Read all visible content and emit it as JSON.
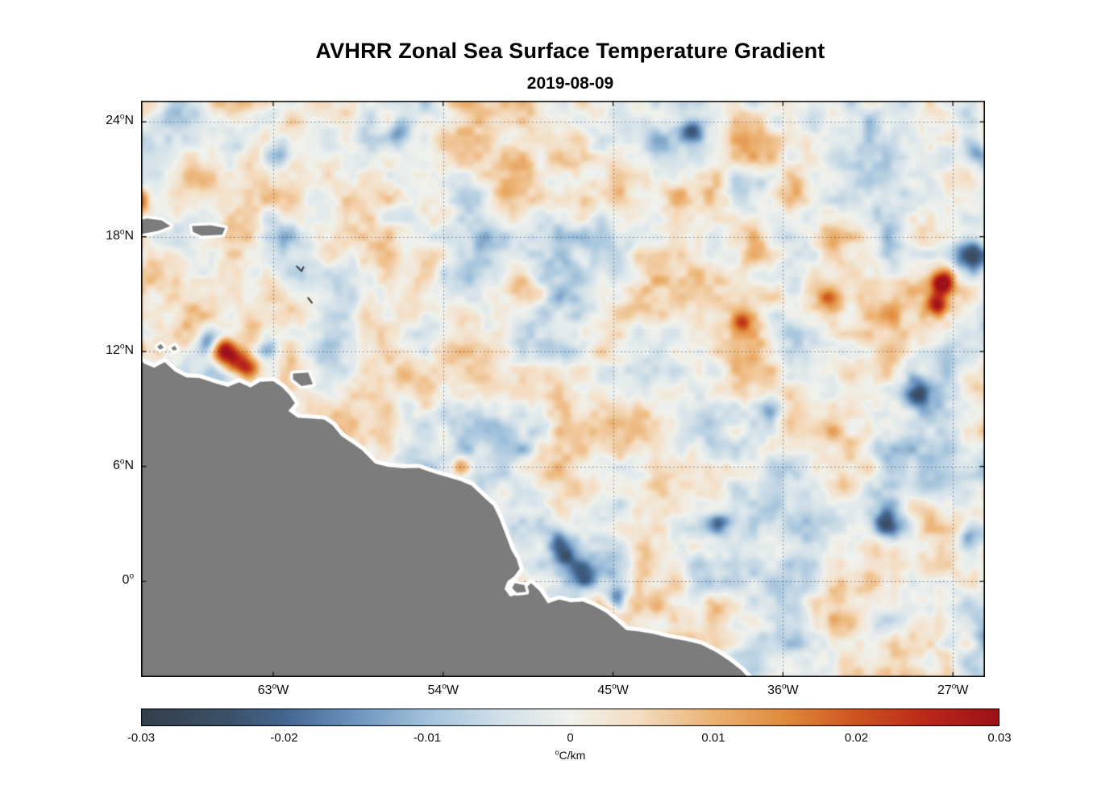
{
  "figure": {
    "title": "AVHRR Zonal Sea Surface Temperature Gradient",
    "subtitle": "2019-08-09"
  },
  "chart_data": {
    "type": "heatmap",
    "title": "AVHRR Zonal Sea Surface Temperature Gradient",
    "subtitle": "2019-08-09",
    "grid": true,
    "degree_symbol": "o",
    "x_axis": {
      "range": [
        -70.0,
        -25.3
      ],
      "ticks": [
        {
          "num": "63",
          "hemi": "W",
          "lon": -63
        },
        {
          "num": "54",
          "hemi": "W",
          "lon": -54
        },
        {
          "num": "45",
          "hemi": "W",
          "lon": -45
        },
        {
          "num": "36",
          "hemi": "W",
          "lon": -36
        },
        {
          "num": "27",
          "hemi": "W",
          "lon": -27
        }
      ]
    },
    "y_axis": {
      "range": [
        -5.0,
        25.1
      ],
      "ticks": [
        {
          "num": "24",
          "hemi": "N",
          "lat": 24
        },
        {
          "num": "18",
          "hemi": "N",
          "lat": 18
        },
        {
          "num": "12",
          "hemi": "N",
          "lat": 12
        },
        {
          "num": "6",
          "hemi": "N",
          "lat": 6
        },
        {
          "num": "0",
          "hemi": "",
          "lat": 0
        }
      ]
    },
    "colorbar": {
      "unit_sup": "o",
      "unit_text": "C/km",
      "range": [
        -0.03,
        0.03
      ],
      "ticks": [
        {
          "label": "-0.03",
          "value": -0.03
        },
        {
          "label": "-0.02",
          "value": -0.02
        },
        {
          "label": "-0.01",
          "value": -0.01
        },
        {
          "label": "0",
          "value": 0
        },
        {
          "label": "0.01",
          "value": 0.01
        },
        {
          "label": "0.02",
          "value": 0.02
        },
        {
          "label": "0.03",
          "value": 0.03
        }
      ],
      "stops": [
        {
          "t": 0.0,
          "color": "#333f4c"
        },
        {
          "t": 0.1,
          "color": "#3c5168"
        },
        {
          "t": 0.1667,
          "color": "#436690"
        },
        {
          "t": 0.25,
          "color": "#6d95bf"
        },
        {
          "t": 0.3333,
          "color": "#a3c3dc"
        },
        {
          "t": 0.42,
          "color": "#d3e1e9"
        },
        {
          "t": 0.5,
          "color": "#f0f2ed"
        },
        {
          "t": 0.58,
          "color": "#f4ddc2"
        },
        {
          "t": 0.6667,
          "color": "#ecb272"
        },
        {
          "t": 0.75,
          "color": "#e08b3c"
        },
        {
          "t": 0.8333,
          "color": "#cd5420"
        },
        {
          "t": 0.92,
          "color": "#ba2619"
        },
        {
          "t": 1.0,
          "color": "#9c1218"
        }
      ]
    },
    "land_color": "#7c7c7c",
    "coast_mask_color": "#ffffff",
    "grid_color": "rgba(25,40,85,0.6)",
    "land_polygons": {
      "mainland": [
        [
          -70.8,
          -5.8
        ],
        [
          -70.8,
          11.35
        ],
        [
          -70.1,
          11.6
        ],
        [
          -69.8,
          11.35
        ],
        [
          -69.3,
          11.15
        ],
        [
          -68.75,
          11.45
        ],
        [
          -68.2,
          10.95
        ],
        [
          -67.6,
          10.65
        ],
        [
          -66.9,
          10.62
        ],
        [
          -66.1,
          10.35
        ],
        [
          -65.4,
          10.15
        ],
        [
          -64.8,
          10.4
        ],
        [
          -64.2,
          10.12
        ],
        [
          -63.7,
          10.42
        ],
        [
          -63.0,
          10.45
        ],
        [
          -62.55,
          10.15
        ],
        [
          -62.15,
          9.75
        ],
        [
          -61.85,
          9.3
        ],
        [
          -62.2,
          8.9
        ],
        [
          -61.7,
          8.55
        ],
        [
          -61.0,
          8.5
        ],
        [
          -60.3,
          8.45
        ],
        [
          -59.85,
          8.15
        ],
        [
          -59.4,
          7.6
        ],
        [
          -58.8,
          7.2
        ],
        [
          -58.3,
          6.85
        ],
        [
          -57.6,
          6.15
        ],
        [
          -56.9,
          5.98
        ],
        [
          -56.1,
          5.9
        ],
        [
          -55.3,
          5.92
        ],
        [
          -54.5,
          5.65
        ],
        [
          -53.8,
          5.45
        ],
        [
          -53.1,
          5.25
        ],
        [
          -52.5,
          5.0
        ],
        [
          -51.8,
          4.35
        ],
        [
          -51.35,
          3.95
        ],
        [
          -51.05,
          3.35
        ],
        [
          -50.7,
          2.45
        ],
        [
          -50.4,
          1.65
        ],
        [
          -50.1,
          1.15
        ],
        [
          -49.95,
          0.65
        ],
        [
          -50.25,
          0.25
        ],
        [
          -50.6,
          0.0
        ],
        [
          -50.75,
          -0.4
        ],
        [
          -50.45,
          -0.8
        ],
        [
          -49.85,
          -0.6
        ],
        [
          -49.35,
          -0.1
        ],
        [
          -48.9,
          -0.5
        ],
        [
          -48.45,
          -1.15
        ],
        [
          -47.85,
          -0.95
        ],
        [
          -47.25,
          -1.1
        ],
        [
          -46.6,
          -1.05
        ],
        [
          -46.0,
          -1.3
        ],
        [
          -45.35,
          -1.65
        ],
        [
          -44.75,
          -2.15
        ],
        [
          -44.3,
          -2.55
        ],
        [
          -43.6,
          -2.62
        ],
        [
          -42.85,
          -2.75
        ],
        [
          -42.05,
          -2.95
        ],
        [
          -41.2,
          -3.1
        ],
        [
          -40.35,
          -3.3
        ],
        [
          -39.55,
          -3.7
        ],
        [
          -38.85,
          -4.15
        ],
        [
          -38.2,
          -4.65
        ],
        [
          -37.6,
          -5.3
        ],
        [
          -37.2,
          -5.8
        ]
      ],
      "islands": [
        [
          [
            -70.9,
            18.3
          ],
          [
            -70.4,
            18.75
          ],
          [
            -69.7,
            18.95
          ],
          [
            -68.9,
            18.85
          ],
          [
            -68.45,
            18.55
          ],
          [
            -69.1,
            18.3
          ],
          [
            -69.9,
            18.15
          ],
          [
            -70.9,
            18.0
          ]
        ],
        [
          [
            -67.3,
            18.55
          ],
          [
            -66.3,
            18.6
          ],
          [
            -65.55,
            18.45
          ],
          [
            -65.7,
            18.1
          ],
          [
            -66.8,
            18.05
          ],
          [
            -67.25,
            18.25
          ]
        ],
        [
          [
            -70.9,
            12.6
          ],
          [
            -70.35,
            12.55
          ],
          [
            -70.15,
            12.2
          ],
          [
            -70.5,
            11.9
          ],
          [
            -70.9,
            11.95
          ]
        ],
        [
          [
            -69.15,
            12.25
          ],
          [
            -68.95,
            12.4
          ],
          [
            -68.8,
            12.2
          ],
          [
            -69.0,
            12.1
          ]
        ],
        [
          [
            -68.4,
            12.2
          ],
          [
            -68.2,
            12.3
          ],
          [
            -68.1,
            12.1
          ],
          [
            -68.3,
            12.05
          ]
        ],
        [
          [
            -61.95,
            10.85
          ],
          [
            -61.15,
            10.9
          ],
          [
            -60.9,
            10.3
          ],
          [
            -61.5,
            10.2
          ],
          [
            -61.95,
            10.55
          ]
        ],
        [
          [
            -50.2,
            -0.1
          ],
          [
            -49.7,
            -0.2
          ],
          [
            -49.6,
            -0.55
          ],
          [
            -50.1,
            -0.6
          ],
          [
            -50.35,
            -0.35
          ]
        ]
      ]
    },
    "island_marks": [
      [
        [
          -61.75,
          16.45
        ],
        [
          -61.5,
          16.2
        ],
        [
          -61.4,
          16.4
        ]
      ],
      [
        [
          -61.15,
          14.8
        ],
        [
          -60.95,
          14.55
        ]
      ]
    ],
    "notable_features": [
      {
        "lon": -70.2,
        "lat": 19.9,
        "value": 0.028,
        "radius": 0.5
      },
      {
        "lon": -70.3,
        "lat": 12.3,
        "value": 0.024,
        "radius": 0.35
      },
      {
        "lon": -65.7,
        "lat": 12.15,
        "value": 0.03,
        "radius": 0.45
      },
      {
        "lon": -65.0,
        "lat": 11.6,
        "value": 0.028,
        "radius": 0.5
      },
      {
        "lon": -64.35,
        "lat": 11.1,
        "value": 0.02,
        "radius": 0.4
      },
      {
        "lon": -66.35,
        "lat": 12.55,
        "value": -0.022,
        "radius": 0.45
      },
      {
        "lon": -63.3,
        "lat": 12.1,
        "value": -0.016,
        "radius": 0.4
      },
      {
        "lon": -62.6,
        "lat": 22.4,
        "value": -0.018,
        "radius": 0.55
      },
      {
        "lon": -40.8,
        "lat": 23.5,
        "value": -0.02,
        "radius": 0.45
      },
      {
        "lon": -56.4,
        "lat": 23.4,
        "value": -0.014,
        "radius": 0.45
      },
      {
        "lon": -27.6,
        "lat": 15.6,
        "value": 0.028,
        "radius": 0.45
      },
      {
        "lon": -27.9,
        "lat": 14.5,
        "value": 0.022,
        "radius": 0.4
      },
      {
        "lon": -26.1,
        "lat": 17.0,
        "value": -0.024,
        "radius": 0.55
      },
      {
        "lon": -25.8,
        "lat": 22.4,
        "value": -0.018,
        "radius": 0.5
      },
      {
        "lon": -29.0,
        "lat": 9.8,
        "value": -0.022,
        "radius": 0.5
      },
      {
        "lon": -47.6,
        "lat": 1.2,
        "value": -0.022,
        "radius": 0.5
      },
      {
        "lon": -46.6,
        "lat": 0.2,
        "value": -0.02,
        "radius": 0.5
      },
      {
        "lon": -44.9,
        "lat": -0.9,
        "value": -0.018,
        "radius": 0.4
      },
      {
        "lon": -39.5,
        "lat": 3.0,
        "value": -0.018,
        "radius": 0.5
      },
      {
        "lon": -36.7,
        "lat": 9.0,
        "value": -0.018,
        "radius": 0.45
      },
      {
        "lon": -53.1,
        "lat": 6.0,
        "value": 0.02,
        "radius": 0.35
      },
      {
        "lon": -38.2,
        "lat": 13.6,
        "value": 0.014,
        "radius": 0.35
      },
      {
        "lon": -30.6,
        "lat": 3.0,
        "value": -0.018,
        "radius": 0.5
      },
      {
        "lon": -26.0,
        "lat": 2.6,
        "value": -0.02,
        "radius": 0.5
      },
      {
        "lon": -33.6,
        "lat": 14.9,
        "value": 0.016,
        "radius": 0.4
      },
      {
        "lon": -47.9,
        "lat": 2.2,
        "value": -0.014,
        "radius": 0.45
      }
    ]
  }
}
